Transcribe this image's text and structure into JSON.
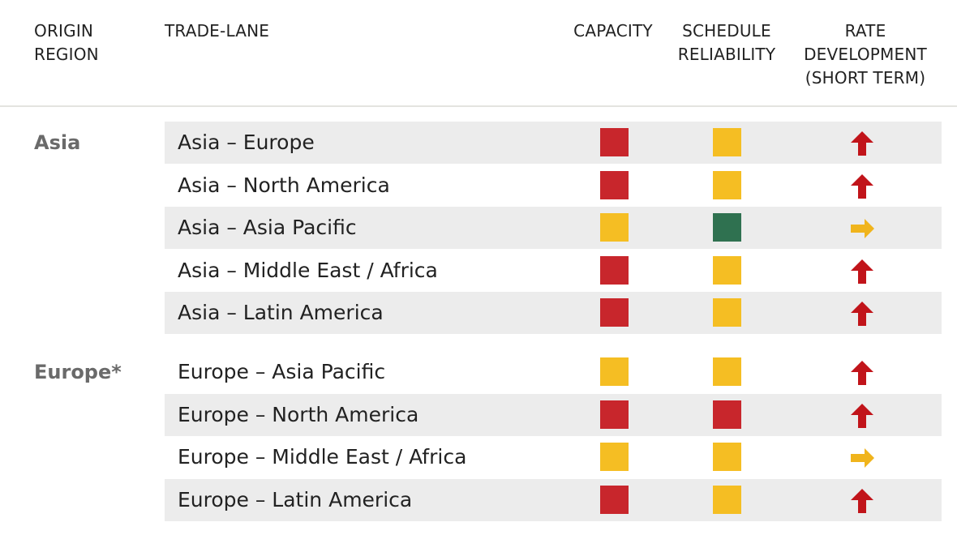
{
  "header": {
    "origin_region": "ORIGIN\nREGION",
    "trade_lane": "TRADE-LANE",
    "capacity": "CAPACITY",
    "schedule_reliability": "SCHEDULE\nRELIABILITY",
    "rate_development": "RATE\nDEVELOPMENT\n(SHORT TERM)"
  },
  "colors": {
    "red": "#c8262c",
    "amber": "#f5be23",
    "green": "#2f7150",
    "arrow_up": "#c1141a",
    "arrow_right": "#f0b41c"
  },
  "groups": [
    {
      "region": "Asia",
      "lanes": [
        {
          "name": "Asia – Europe",
          "capacity": "red",
          "schedule_reliability": "amber",
          "rate_development": "up"
        },
        {
          "name": "Asia – North America",
          "capacity": "red",
          "schedule_reliability": "amber",
          "rate_development": "up"
        },
        {
          "name": "Asia – Asia Pacific",
          "capacity": "amber",
          "schedule_reliability": "green",
          "rate_development": "right"
        },
        {
          "name": "Asia – Middle East / Africa",
          "capacity": "red",
          "schedule_reliability": "amber",
          "rate_development": "up"
        },
        {
          "name": "Asia – Latin America",
          "capacity": "red",
          "schedule_reliability": "amber",
          "rate_development": "up"
        }
      ]
    },
    {
      "region": "Europe*",
      "lanes": [
        {
          "name": "Europe – Asia Pacific",
          "capacity": "amber",
          "schedule_reliability": "amber",
          "rate_development": "up"
        },
        {
          "name": "Europe – North America",
          "capacity": "red",
          "schedule_reliability": "red",
          "rate_development": "up"
        },
        {
          "name": "Europe – Middle East / Africa",
          "capacity": "amber",
          "schedule_reliability": "amber",
          "rate_development": "right"
        },
        {
          "name": "Europe – Latin America",
          "capacity": "red",
          "schedule_reliability": "amber",
          "rate_development": "up"
        }
      ]
    }
  ]
}
